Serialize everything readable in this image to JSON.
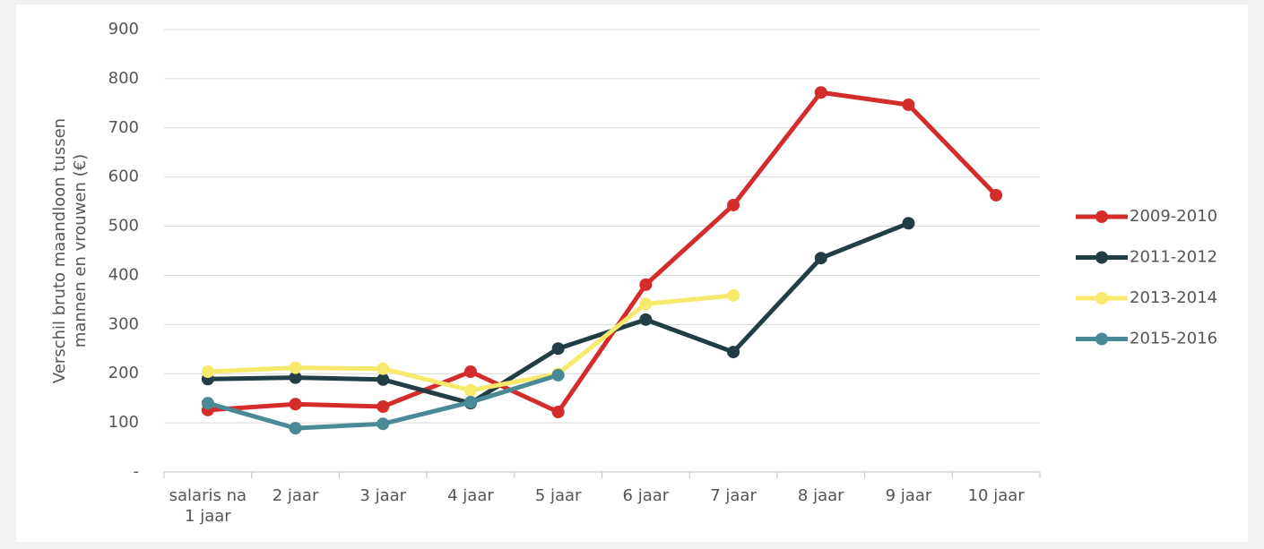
{
  "chart_data": {
    "type": "line",
    "y_label": "Verschil bruto maandloon tussen mannen en vrouwen (€)",
    "categories": [
      "salaris na 1 jaar",
      "2 jaar",
      "3 jaar",
      "4 jaar",
      "5 jaar",
      "6 jaar",
      "7 jaar",
      "8 jaar",
      "9 jaar",
      "10 jaar"
    ],
    "series": [
      {
        "name": "2009-2010",
        "color": "#d42b2b",
        "values": [
          126,
          138,
          133,
          204,
          122,
          381,
          543,
          772,
          747,
          563
        ]
      },
      {
        "name": "2011-2012",
        "color": "#233d45",
        "values": [
          189,
          192,
          188,
          140,
          251,
          310,
          244,
          435,
          506,
          null
        ]
      },
      {
        "name": "2013-2014",
        "color": "#f7e96b",
        "values": [
          204,
          212,
          210,
          166,
          200,
          342,
          359,
          null,
          null,
          null
        ]
      },
      {
        "name": "2015-2016",
        "color": "#4a8a96",
        "values": [
          140,
          89,
          98,
          142,
          197,
          null,
          null,
          null,
          null,
          null
        ]
      }
    ],
    "ylim": [
      0,
      900
    ],
    "yticks": [
      {
        "value": 0,
        "label": "-"
      },
      100,
      200,
      300,
      400,
      500,
      600,
      700,
      800,
      900
    ],
    "grid": true,
    "legend": "right"
  }
}
